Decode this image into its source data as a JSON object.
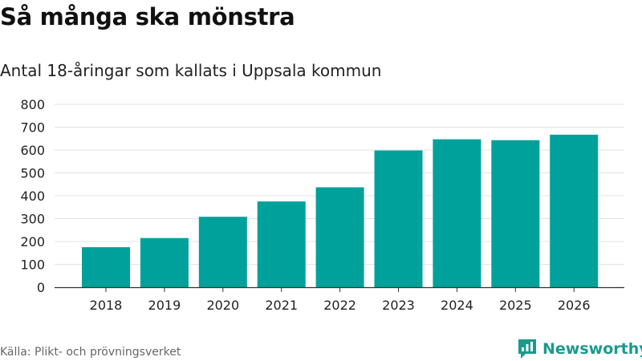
{
  "title": "Så många ska mönstra",
  "subtitle": "Antal 18-åringar som kallats i Uppsala kommun",
  "source": "Källa: Plikt- och prövningsverket",
  "logo": {
    "text": "Newsworthy",
    "icon": "newsworthy-chart-bubble-icon",
    "color": "#1a9a8e"
  },
  "colors": {
    "bar": "#00a19a",
    "grid": "#e3e3e3",
    "axis": "#333333"
  },
  "chart_data": {
    "type": "bar",
    "categories": [
      "2018",
      "2019",
      "2020",
      "2021",
      "2022",
      "2023",
      "2024",
      "2025",
      "2026"
    ],
    "values": [
      175,
      215,
      308,
      375,
      437,
      598,
      647,
      643,
      667
    ],
    "ylim": [
      0,
      800
    ],
    "yticks": [
      0,
      100,
      200,
      300,
      400,
      500,
      600,
      700,
      800
    ],
    "grid": true,
    "legend": "none"
  }
}
